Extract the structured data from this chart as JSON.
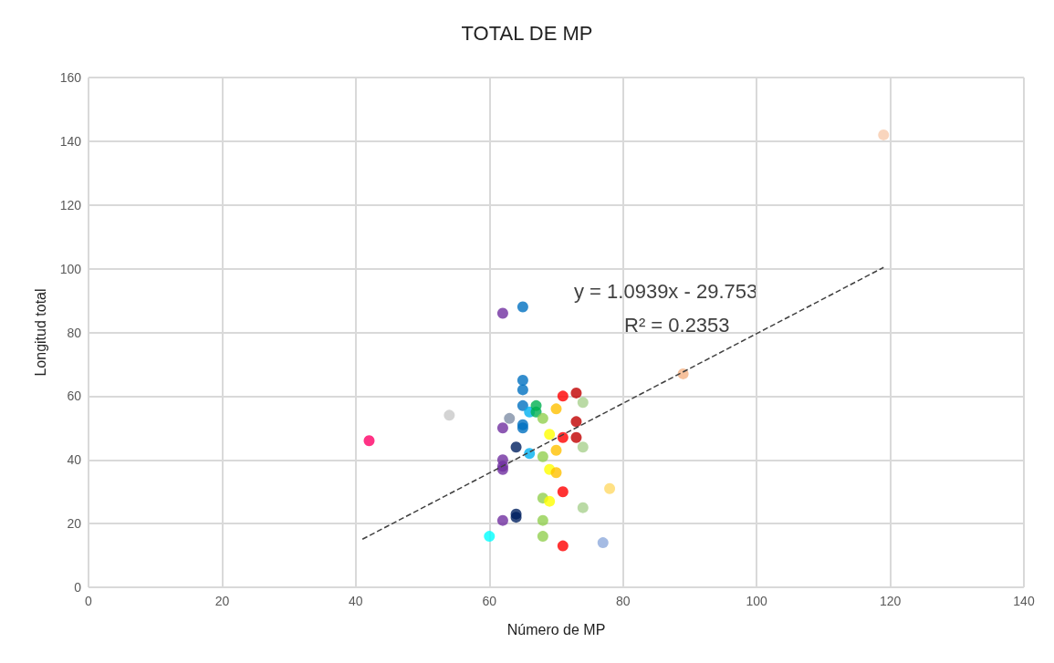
{
  "chart_data": {
    "type": "scatter",
    "title": "TOTAL DE MP",
    "xlabel": "Número de MP",
    "ylabel": "Longitud total",
    "xlim": [
      0,
      140
    ],
    "xticks": [
      0,
      20,
      40,
      60,
      80,
      100,
      120,
      140
    ],
    "ylim": [
      0,
      160
    ],
    "yticks": [
      0,
      20,
      40,
      60,
      80,
      100,
      120,
      140,
      160
    ],
    "grid": true,
    "marker": "circle",
    "annotations": [
      "y = 1.0939x - 29.753",
      "R² = 0.2353"
    ],
    "series": [
      {
        "type": "scatter",
        "x": [
          62,
          62,
          62,
          62,
          62,
          62,
          65,
          65,
          65,
          65,
          65,
          65,
          66,
          66,
          67,
          67,
          63,
          64,
          64,
          64,
          68,
          68,
          68,
          68,
          68,
          69,
          69,
          69,
          70,
          70,
          70,
          71,
          71,
          71,
          71,
          73,
          73,
          73,
          74,
          74,
          74,
          78,
          77,
          60,
          42,
          54,
          89,
          119
        ],
        "values": [
          86,
          50,
          40,
          38,
          37,
          21,
          88,
          65,
          62,
          57,
          51,
          50,
          55,
          42,
          57,
          55,
          53,
          44,
          23,
          22,
          53,
          41,
          28,
          21,
          16,
          48,
          37,
          27,
          56,
          43,
          36,
          60,
          47,
          30,
          13,
          61,
          52,
          47,
          58,
          44,
          25,
          31,
          14,
          16,
          46,
          54,
          67,
          142
        ],
        "colors": [
          "#7030a0",
          "#7030a0",
          "#7030a0",
          "#7030a0",
          "#7030a0",
          "#7030a0",
          "#0070c0",
          "#0070c0",
          "#0070c0",
          "#0070c0",
          "#0070c0",
          "#0070c0",
          "#00b0f0",
          "#00b0f0",
          "#00b050",
          "#00b050",
          "#7f8fa6",
          "#002060",
          "#002060",
          "#002060",
          "#92d050",
          "#92d050",
          "#92d050",
          "#92d050",
          "#92d050",
          "#ffff00",
          "#ffff00",
          "#ffff00",
          "#ffc000",
          "#ffc000",
          "#ffc000",
          "#ff0000",
          "#ff0000",
          "#ff0000",
          "#ff0000",
          "#c00000",
          "#c00000",
          "#c00000",
          "#a9d18e",
          "#a9d18e",
          "#a9d18e",
          "#ffd966",
          "#8faadc",
          "#00ffff",
          "#ff0066",
          "#c9c9c9",
          "#f4b183",
          "#f8cbad"
        ]
      },
      {
        "type": "line",
        "x": [
          41,
          119
        ],
        "values": [
          15.1,
          100.4
        ],
        "color": "#404040",
        "line_style": "dashed",
        "marker": "none"
      }
    ]
  }
}
